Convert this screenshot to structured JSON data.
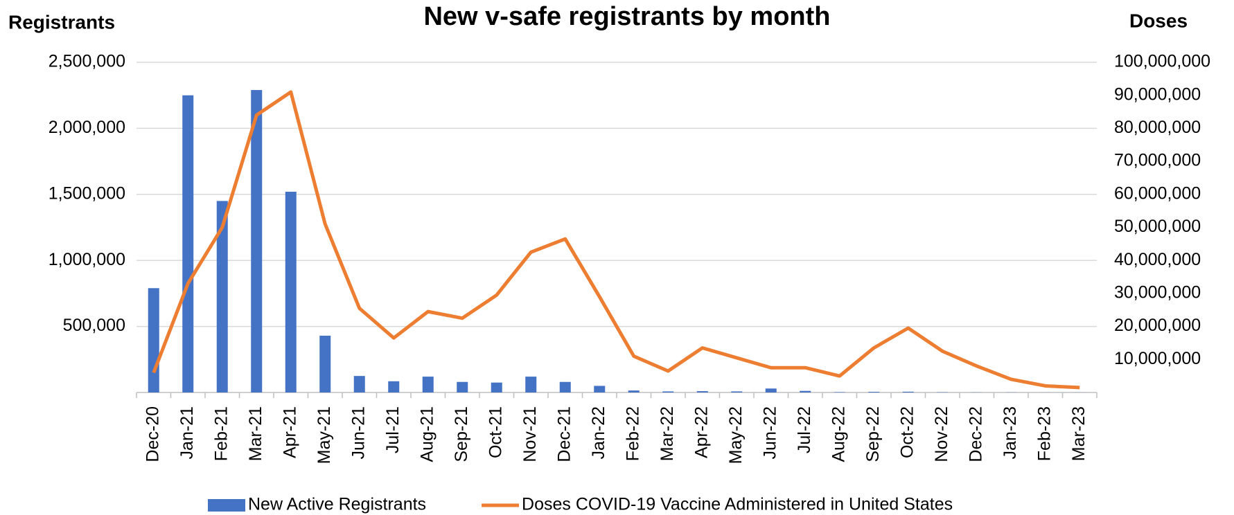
{
  "chart_data": {
    "type": "bar_line",
    "title": "New v-safe registrants by month",
    "y_label": "Registrants",
    "y2_label": "Doses",
    "categories": [
      "Dec-20",
      "Jan-21",
      "Feb-21",
      "Mar-21",
      "Apr-21",
      "May-21",
      "Jun-21",
      "Jul-21",
      "Aug-21",
      "Sep-21",
      "Oct-21",
      "Nov-21",
      "Dec-21",
      "Jan-22",
      "Feb-22",
      "Mar-22",
      "Apr-22",
      "May-22",
      "Jun-22",
      "Jul-22",
      "Aug-22",
      "Sep-22",
      "Oct-22",
      "Nov-22",
      "Dec-22",
      "Jan-23",
      "Feb-23",
      "Mar-23"
    ],
    "series": [
      {
        "name": "New Active Registrants",
        "color": "#4472c4",
        "kind": "bar",
        "values": [
          790000,
          2250000,
          1450000,
          2290000,
          1520000,
          430000,
          125000,
          85000,
          120000,
          80000,
          75000,
          120000,
          80000,
          50000,
          15000,
          8000,
          10000,
          8000,
          30000,
          12000,
          3000,
          5000,
          6000,
          2000,
          1000,
          1000,
          500,
          500
        ]
      },
      {
        "name": "Doses COVID-19 Vaccine Administered in United States",
        "color": "#ed7d31",
        "kind": "line",
        "axis": "y2",
        "values": [
          6000000,
          33000000,
          50000000,
          84000000,
          91000000,
          51000000,
          25500000,
          16500000,
          24500000,
          22500000,
          29500000,
          42500000,
          46500000,
          29000000,
          11000000,
          6500000,
          13500000,
          10500000,
          7500000,
          7500000,
          5000000,
          13500000,
          19500000,
          12500000,
          8000000,
          4000000,
          2000000,
          1500000
        ]
      }
    ],
    "ylim": [
      0,
      2500000
    ],
    "yticks": [
      {
        "value": 500000,
        "label": "500,000"
      },
      {
        "value": 1000000,
        "label": "1,000,000"
      },
      {
        "value": 1500000,
        "label": "1,500,000"
      },
      {
        "value": 2000000,
        "label": "2,000,000"
      },
      {
        "value": 2500000,
        "label": "2,500,000"
      }
    ],
    "y2lim": [
      0,
      100000000
    ],
    "y2ticks": [
      {
        "value": 10000000,
        "label": "10,000,000"
      },
      {
        "value": 20000000,
        "label": "20,000,000"
      },
      {
        "value": 30000000,
        "label": "30,000,000"
      },
      {
        "value": 40000000,
        "label": "40,000,000"
      },
      {
        "value": 50000000,
        "label": "50,000,000"
      },
      {
        "value": 60000000,
        "label": "60,000,000"
      },
      {
        "value": 70000000,
        "label": "70,000,000"
      },
      {
        "value": 80000000,
        "label": "80,000,000"
      },
      {
        "value": 90000000,
        "label": "90,000,000"
      },
      {
        "value": 100000000,
        "label": "100,000,000"
      }
    ],
    "grid": true,
    "legend": "bottom"
  }
}
